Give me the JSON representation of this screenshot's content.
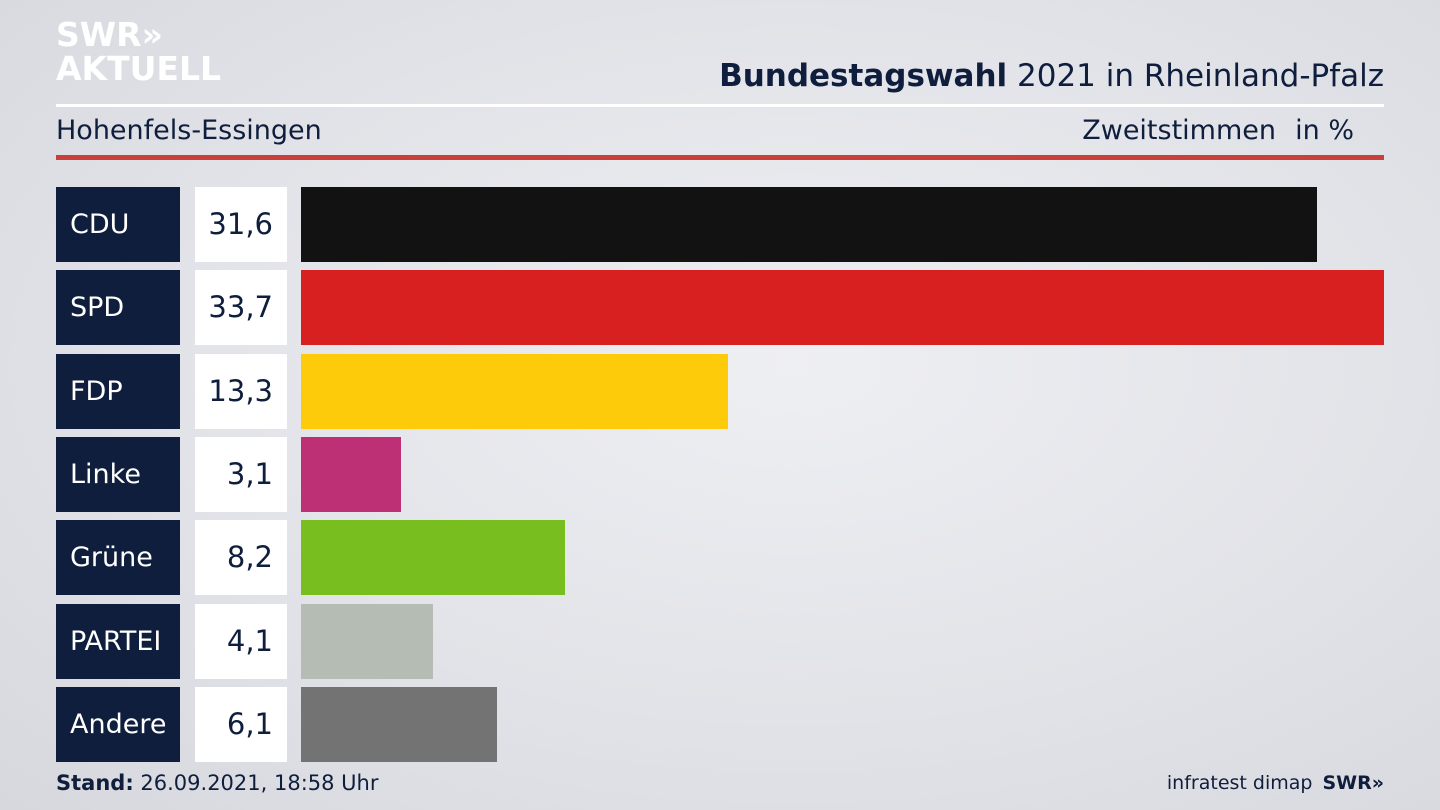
{
  "logo": {
    "line1": "SWR»",
    "line2": "AKTUELL"
  },
  "header": {
    "title_bold": "Bundestagswahl",
    "title_rest": " 2021 in Rheinland-Pfalz",
    "subtitle": "Hohenfels-Essingen",
    "measure": "Zweitstimmen",
    "unit": "in %"
  },
  "chart_data": {
    "type": "bar",
    "orientation": "horizontal",
    "title": "Bundestagswahl 2021 in Rheinland-Pfalz",
    "subtitle": "Hohenfels-Essingen",
    "xlabel": "Zweitstimmen",
    "ylabel": "",
    "unit": "in %",
    "xlim": [
      0,
      33.7
    ],
    "grid": false,
    "categories": [
      "CDU",
      "SPD",
      "FDP",
      "Linke",
      "Grüne",
      "PARTEI",
      "Andere"
    ],
    "values": [
      31.6,
      33.7,
      13.3,
      3.1,
      8.2,
      4.1,
      6.1
    ],
    "value_labels": [
      "31,6",
      "33,7",
      "13,3",
      "3,1",
      "8,2",
      "4,1",
      "6,1"
    ],
    "colors": [
      "#121212",
      "#d82020",
      "#fecb0a",
      "#be3075",
      "#78be1e",
      "#b4bcb4",
      "#737373"
    ]
  },
  "footer": {
    "stand_label": "Stand:",
    "stand_value": " 26.09.2021, 18:58 Uhr",
    "source": "infratest dimap",
    "brand": "SWR»"
  }
}
